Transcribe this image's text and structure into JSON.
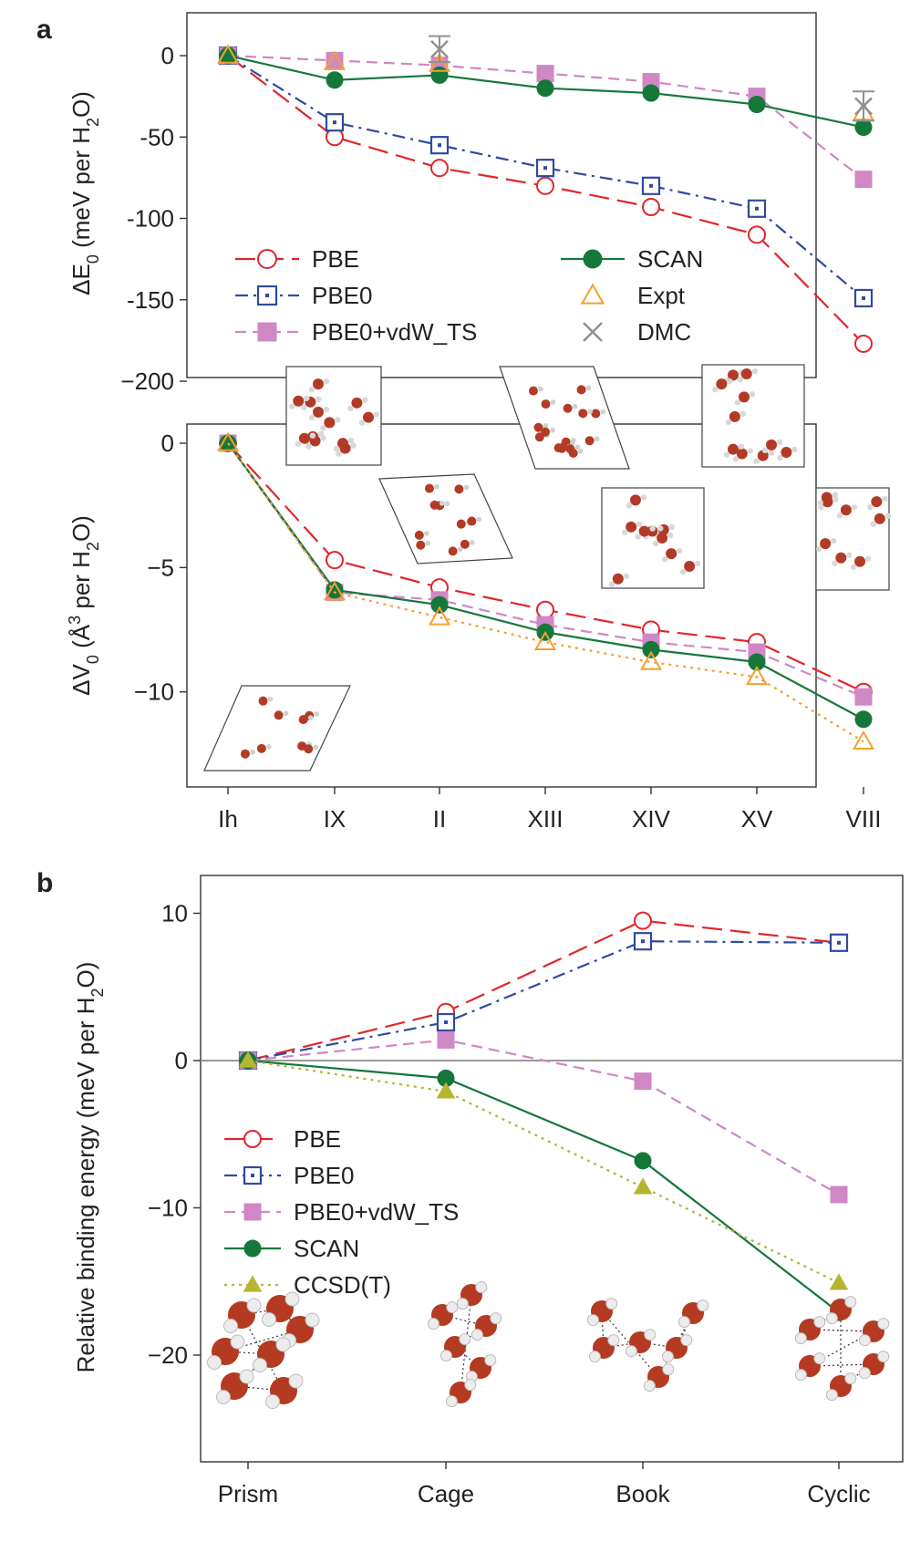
{
  "panels": {
    "a_label": "a",
    "b_label": "b"
  },
  "chart_data": [
    {
      "type": "line",
      "panel": "a (top)",
      "ylabel_prefix": "ΔE",
      "ylabel_sub": "0",
      "ylabel_rest": " (meV per H",
      "ylabel_sub2": "2",
      "ylabel_end": "O)",
      "ylim": [
        -200,
        15
      ],
      "yticks": [
        0,
        -50,
        -100,
        -150,
        -200
      ],
      "ytick_labels": [
        "0",
        "-50",
        "-100",
        "-150",
        "−200"
      ],
      "categories": [
        "Ih",
        "IX",
        "II",
        "XIII",
        "XIV",
        "XV",
        "VIII"
      ],
      "series": [
        {
          "name": "PBE",
          "color": "#e0262b",
          "marker": "open-circle",
          "dash": "long-dash",
          "values": [
            0,
            -50,
            -69,
            -80,
            -93,
            -110,
            -177
          ]
        },
        {
          "name": "PBE0",
          "color": "#2f4aa0",
          "marker": "dotted-square",
          "dash": "dash-dot",
          "values": [
            0,
            -41,
            -55,
            -69,
            -80,
            -94,
            -149
          ]
        },
        {
          "name": "PBE0+vdW_TS",
          "color": "#cf87c6",
          "marker": "filled-square",
          "dash": "dash",
          "values": [
            0,
            -3,
            -6,
            -11,
            -16,
            -25,
            -76
          ]
        },
        {
          "name": "SCAN",
          "color": "#16773b",
          "marker": "filled-circle",
          "dash": "solid",
          "values": [
            0,
            -15,
            -12,
            -20,
            -23,
            -30,
            -44
          ]
        },
        {
          "name": "Expt",
          "color": "#f5a030",
          "marker": "open-triangle",
          "dash": "none",
          "values": [
            0,
            -4,
            -5,
            null,
            null,
            null,
            -35
          ]
        },
        {
          "name": "DMC",
          "color": "#909090",
          "marker": "x",
          "dash": "none",
          "values": [
            null,
            null,
            4,
            null,
            null,
            null,
            -31
          ],
          "error": [
            null,
            null,
            8,
            null,
            null,
            null,
            9
          ]
        }
      ],
      "legend": [
        [
          "PBE",
          "SCAN"
        ],
        [
          "PBE0",
          "Expt"
        ],
        [
          "PBE0+vdW_TS",
          "DMC"
        ]
      ]
    },
    {
      "type": "line",
      "panel": "a (bottom)",
      "ylabel_prefix": "ΔV",
      "ylabel_sub": "0",
      "ylabel_rest": " (Å",
      "ylabel_sup": "3",
      "ylabel_rest2": " per H",
      "ylabel_sub2": "2",
      "ylabel_end": "O)",
      "ylim": [
        -12.5,
        0.3
      ],
      "yticks": [
        0,
        -5,
        -10
      ],
      "ytick_labels": [
        "0",
        "−5",
        "−10"
      ],
      "categories": [
        "Ih",
        "IX",
        "II",
        "XIII",
        "XIV",
        "XV",
        "VIII"
      ],
      "series": [
        {
          "name": "PBE",
          "color": "#e0262b",
          "marker": "open-circle",
          "dash": "long-dash",
          "values": [
            0,
            -4.7,
            -5.8,
            -6.7,
            -7.5,
            -8.0,
            -10.0
          ]
        },
        {
          "name": "PBE0+vdW_TS",
          "color": "#cf87c6",
          "marker": "filled-square",
          "dash": "dash",
          "values": [
            0,
            -6.0,
            -6.3,
            -7.3,
            -8.0,
            -8.4,
            -10.2
          ]
        },
        {
          "name": "SCAN",
          "color": "#16773b",
          "marker": "filled-circle",
          "dash": "solid",
          "values": [
            0,
            -5.9,
            -6.5,
            -7.6,
            -8.3,
            -8.8,
            -11.1
          ]
        },
        {
          "name": "Expt",
          "color": "#f5a030",
          "marker": "open-triangle",
          "dash": "dot",
          "values": [
            0,
            -6.0,
            -7.0,
            -8.0,
            -8.8,
            -9.4,
            -12.0
          ]
        }
      ]
    },
    {
      "type": "line",
      "panel": "b",
      "ylabel_rest": "Relative binding energy (meV per H",
      "ylabel_sub2": "2",
      "ylabel_end": "O)",
      "ylim": [
        -28,
        12
      ],
      "yticks": [
        10,
        0,
        -10,
        -20
      ],
      "ytick_labels": [
        "10",
        "0",
        "−10",
        "−20"
      ],
      "categories": [
        "Prism",
        "Cage",
        "Book",
        "Cyclic"
      ],
      "series": [
        {
          "name": "PBE",
          "color": "#e0262b",
          "marker": "open-circle",
          "dash": "long-dash",
          "values": [
            0,
            3.3,
            9.5,
            8.0
          ]
        },
        {
          "name": "PBE0",
          "color": "#2f4aa0",
          "marker": "dotted-square",
          "dash": "dash-dot",
          "values": [
            0,
            2.6,
            8.1,
            8.0
          ]
        },
        {
          "name": "PBE0+vdW_TS",
          "color": "#cf87c6",
          "marker": "filled-square",
          "dash": "dash",
          "values": [
            0,
            1.4,
            -1.4,
            -9.1
          ]
        },
        {
          "name": "SCAN",
          "color": "#16773b",
          "marker": "filled-circle",
          "dash": "solid",
          "values": [
            0,
            -1.2,
            -6.8,
            -17.1
          ]
        },
        {
          "name": "CCSD(T)",
          "color": "#b5b531",
          "marker": "filled-triangle",
          "dash": "dot",
          "values": [
            0,
            -2.1,
            -8.6,
            -15.1
          ]
        }
      ],
      "legend": [
        "PBE",
        "PBE0",
        "PBE0+vdW_TS",
        "SCAN",
        "CCSD(T)"
      ]
    }
  ]
}
